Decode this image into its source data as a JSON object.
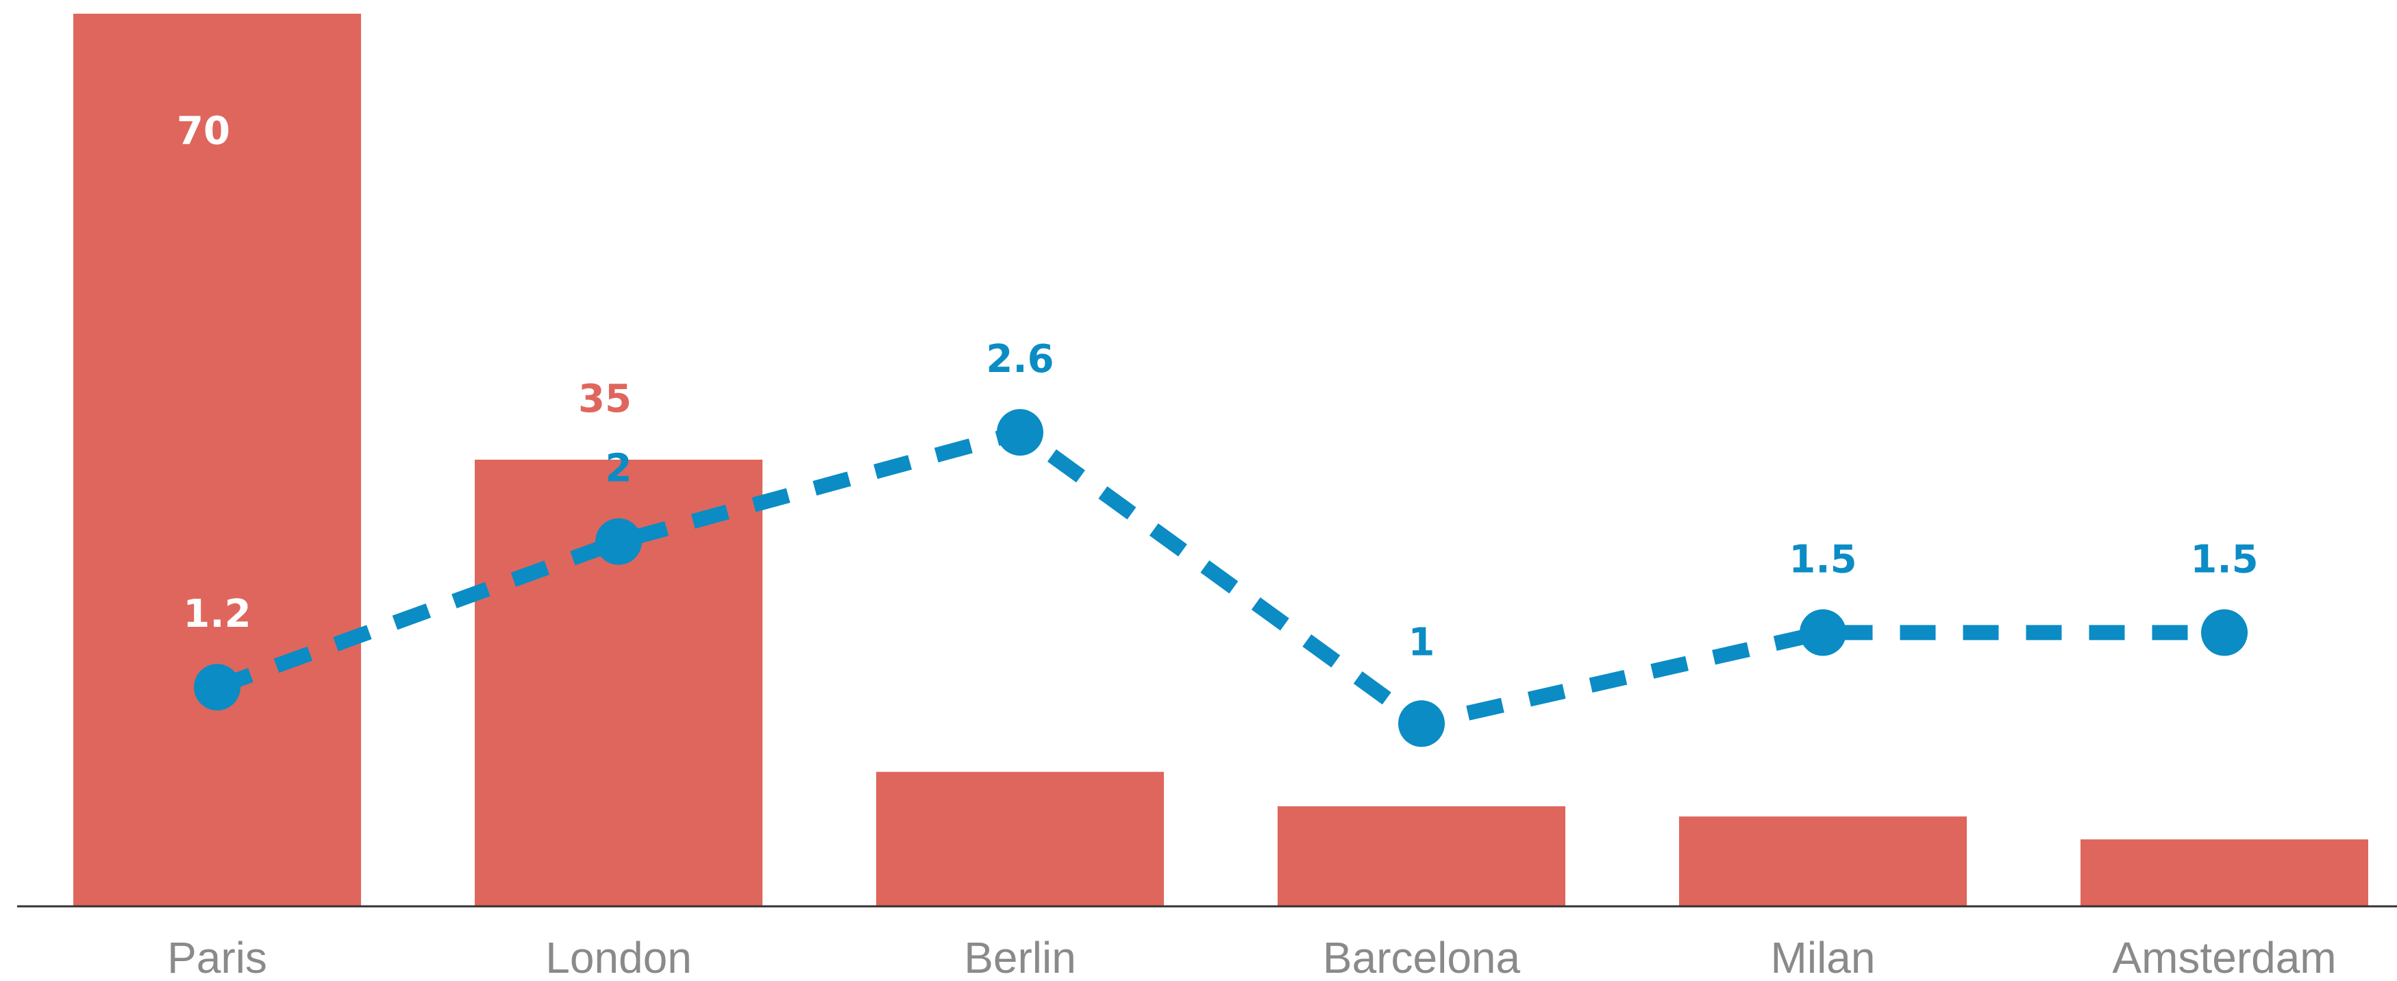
{
  "colors": {
    "bar": "#df665c",
    "line": "#0b8cc4",
    "axis": "#333333",
    "label_gray": "#8a8a8a",
    "label_white": "#ffffff"
  },
  "chart_data": {
    "type": "bar",
    "categories": [
      "Paris",
      "London",
      "Berlin",
      "Barcelona",
      "Milan",
      "Amsterdam"
    ],
    "series": [
      {
        "type": "bar",
        "values": [
          70,
          35,
          10.5,
          7.8,
          7,
          5.2
        ],
        "labels": [
          "70",
          "35",
          "",
          "",
          "",
          ""
        ]
      },
      {
        "type": "line",
        "style": "dashed",
        "values": [
          1.2,
          2,
          2.6,
          1,
          1.5,
          1.5
        ],
        "labels": [
          "1.2",
          "2",
          "2.6",
          "1",
          "1.5",
          "1.5"
        ]
      }
    ],
    "bar_ylim": [
      0,
      70
    ],
    "line_ylim": [
      0,
      4.9
    ],
    "title": "",
    "xlabel": "",
    "ylabel": "",
    "grid": false,
    "legend": "none"
  }
}
